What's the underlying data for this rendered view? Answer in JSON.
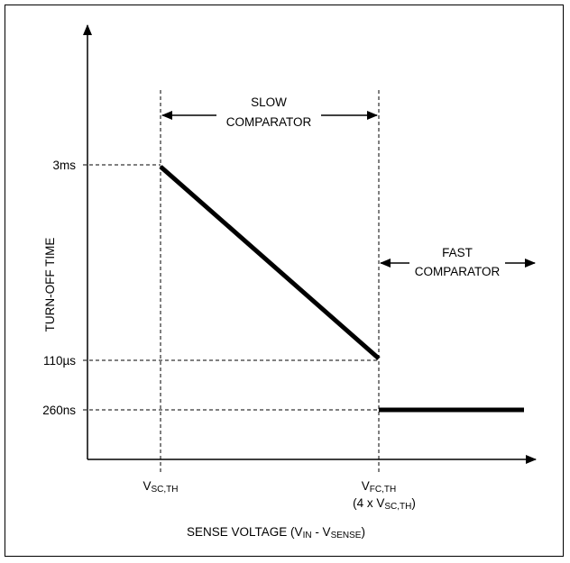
{
  "chart_data": {
    "type": "line",
    "title": "",
    "xlabel": {
      "main": "SENSE VOLTAGE (V",
      "sub1": "IN",
      "mid": " - V",
      "sub2": "SENSE",
      "end": ")"
    },
    "ylabel": "TURN-OFF TIME",
    "y_ticks": [
      "3ms",
      "110µs",
      "260ns"
    ],
    "x_ticks": [
      {
        "main": "V",
        "sub": "SC,TH"
      },
      {
        "main": "V",
        "sub": "FC,TH",
        "line2_pre": "(4 x V",
        "line2_sub": "SC,TH",
        "line2_post": ")"
      }
    ],
    "regions": [
      {
        "name": "SLOW COMPARATOR",
        "line1": "SLOW",
        "line2": "COMPARATOR"
      },
      {
        "name": "FAST COMPARATOR",
        "line1": "FAST",
        "line2": "COMPARATOR"
      }
    ],
    "series": [
      {
        "segment": "slow",
        "points": [
          [
            "VSC,TH",
            "3ms"
          ],
          [
            "VFC,TH",
            "110µs"
          ]
        ]
      },
      {
        "segment": "fast",
        "points": [
          [
            "VFC,TH",
            "260ns"
          ],
          [
            "beyond",
            "260ns"
          ]
        ]
      }
    ],
    "grid": false,
    "legend": "none"
  }
}
